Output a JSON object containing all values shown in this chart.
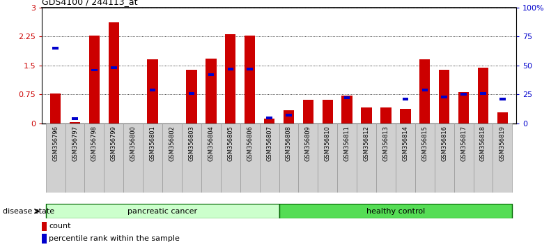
{
  "title": "GDS4100 / 244113_at",
  "samples": [
    "GSM356796",
    "GSM356797",
    "GSM356798",
    "GSM356799",
    "GSM356800",
    "GSM356801",
    "GSM356802",
    "GSM356803",
    "GSM356804",
    "GSM356805",
    "GSM356806",
    "GSM356807",
    "GSM356808",
    "GSM356809",
    "GSM356810",
    "GSM356811",
    "GSM356812",
    "GSM356813",
    "GSM356814",
    "GSM356815",
    "GSM356816",
    "GSM356817",
    "GSM356818",
    "GSM356819"
  ],
  "count_values": [
    0.78,
    0.03,
    2.28,
    2.62,
    0.0,
    1.65,
    0.0,
    1.38,
    1.68,
    2.3,
    2.28,
    0.12,
    0.35,
    0.62,
    0.62,
    0.73,
    0.42,
    0.42,
    0.38,
    1.65,
    1.38,
    0.82,
    1.45,
    0.28
  ],
  "percentile_values_pct": [
    65,
    4,
    46,
    48,
    0,
    29,
    0,
    26,
    42,
    47,
    47,
    5,
    7,
    0,
    0,
    22,
    0,
    0,
    21,
    29,
    23,
    25,
    26,
    21
  ],
  "ylim_left": [
    0,
    3
  ],
  "ylim_right": [
    0,
    100
  ],
  "yticks_left": [
    0,
    0.75,
    1.5,
    2.25,
    3
  ],
  "yticks_right": [
    0,
    25,
    50,
    75,
    100
  ],
  "ytick_labels_right": [
    "0",
    "25",
    "50",
    "75",
    "100%"
  ],
  "bar_color": "#cc0000",
  "dot_color": "#0000cc",
  "group1_label": "pancreatic cancer",
  "group2_label": "healthy control",
  "group1_color": "#ccffcc",
  "group2_color": "#55dd55",
  "group1_count": 12,
  "group2_count": 12,
  "disease_state_label": "disease state",
  "legend_count": "count",
  "legend_percentile": "percentile rank within the sample",
  "bar_width": 0.55,
  "grid_linestyle": ":",
  "grid_color": "#000000",
  "tick_bg_color": "#d0d0d0"
}
